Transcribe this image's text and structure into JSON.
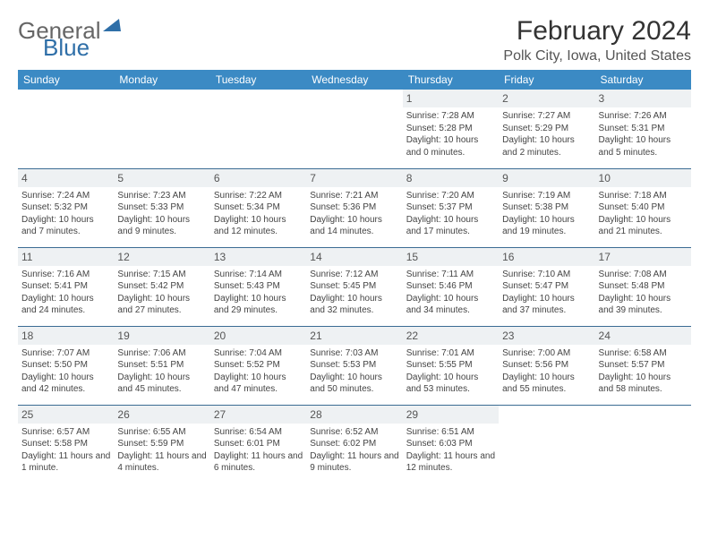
{
  "logo": {
    "text1": "General",
    "text2": "Blue"
  },
  "title": "February 2024",
  "location": "Polk City, Iowa, United States",
  "colors": {
    "header_bg": "#3b8ac4",
    "header_text": "#ffffff",
    "daynum_bg": "#eef1f3",
    "row_border": "#3b6c93",
    "logo_accent": "#2f6fa8"
  },
  "dayHeaders": [
    "Sunday",
    "Monday",
    "Tuesday",
    "Wednesday",
    "Thursday",
    "Friday",
    "Saturday"
  ],
  "weeks": [
    [
      {
        "n": "",
        "sr": "",
        "ss": "",
        "dl": ""
      },
      {
        "n": "",
        "sr": "",
        "ss": "",
        "dl": ""
      },
      {
        "n": "",
        "sr": "",
        "ss": "",
        "dl": ""
      },
      {
        "n": "",
        "sr": "",
        "ss": "",
        "dl": ""
      },
      {
        "n": "1",
        "sr": "Sunrise: 7:28 AM",
        "ss": "Sunset: 5:28 PM",
        "dl": "Daylight: 10 hours and 0 minutes."
      },
      {
        "n": "2",
        "sr": "Sunrise: 7:27 AM",
        "ss": "Sunset: 5:29 PM",
        "dl": "Daylight: 10 hours and 2 minutes."
      },
      {
        "n": "3",
        "sr": "Sunrise: 7:26 AM",
        "ss": "Sunset: 5:31 PM",
        "dl": "Daylight: 10 hours and 5 minutes."
      }
    ],
    [
      {
        "n": "4",
        "sr": "Sunrise: 7:24 AM",
        "ss": "Sunset: 5:32 PM",
        "dl": "Daylight: 10 hours and 7 minutes."
      },
      {
        "n": "5",
        "sr": "Sunrise: 7:23 AM",
        "ss": "Sunset: 5:33 PM",
        "dl": "Daylight: 10 hours and 9 minutes."
      },
      {
        "n": "6",
        "sr": "Sunrise: 7:22 AM",
        "ss": "Sunset: 5:34 PM",
        "dl": "Daylight: 10 hours and 12 minutes."
      },
      {
        "n": "7",
        "sr": "Sunrise: 7:21 AM",
        "ss": "Sunset: 5:36 PM",
        "dl": "Daylight: 10 hours and 14 minutes."
      },
      {
        "n": "8",
        "sr": "Sunrise: 7:20 AM",
        "ss": "Sunset: 5:37 PM",
        "dl": "Daylight: 10 hours and 17 minutes."
      },
      {
        "n": "9",
        "sr": "Sunrise: 7:19 AM",
        "ss": "Sunset: 5:38 PM",
        "dl": "Daylight: 10 hours and 19 minutes."
      },
      {
        "n": "10",
        "sr": "Sunrise: 7:18 AM",
        "ss": "Sunset: 5:40 PM",
        "dl": "Daylight: 10 hours and 21 minutes."
      }
    ],
    [
      {
        "n": "11",
        "sr": "Sunrise: 7:16 AM",
        "ss": "Sunset: 5:41 PM",
        "dl": "Daylight: 10 hours and 24 minutes."
      },
      {
        "n": "12",
        "sr": "Sunrise: 7:15 AM",
        "ss": "Sunset: 5:42 PM",
        "dl": "Daylight: 10 hours and 27 minutes."
      },
      {
        "n": "13",
        "sr": "Sunrise: 7:14 AM",
        "ss": "Sunset: 5:43 PM",
        "dl": "Daylight: 10 hours and 29 minutes."
      },
      {
        "n": "14",
        "sr": "Sunrise: 7:12 AM",
        "ss": "Sunset: 5:45 PM",
        "dl": "Daylight: 10 hours and 32 minutes."
      },
      {
        "n": "15",
        "sr": "Sunrise: 7:11 AM",
        "ss": "Sunset: 5:46 PM",
        "dl": "Daylight: 10 hours and 34 minutes."
      },
      {
        "n": "16",
        "sr": "Sunrise: 7:10 AM",
        "ss": "Sunset: 5:47 PM",
        "dl": "Daylight: 10 hours and 37 minutes."
      },
      {
        "n": "17",
        "sr": "Sunrise: 7:08 AM",
        "ss": "Sunset: 5:48 PM",
        "dl": "Daylight: 10 hours and 39 minutes."
      }
    ],
    [
      {
        "n": "18",
        "sr": "Sunrise: 7:07 AM",
        "ss": "Sunset: 5:50 PM",
        "dl": "Daylight: 10 hours and 42 minutes."
      },
      {
        "n": "19",
        "sr": "Sunrise: 7:06 AM",
        "ss": "Sunset: 5:51 PM",
        "dl": "Daylight: 10 hours and 45 minutes."
      },
      {
        "n": "20",
        "sr": "Sunrise: 7:04 AM",
        "ss": "Sunset: 5:52 PM",
        "dl": "Daylight: 10 hours and 47 minutes."
      },
      {
        "n": "21",
        "sr": "Sunrise: 7:03 AM",
        "ss": "Sunset: 5:53 PM",
        "dl": "Daylight: 10 hours and 50 minutes."
      },
      {
        "n": "22",
        "sr": "Sunrise: 7:01 AM",
        "ss": "Sunset: 5:55 PM",
        "dl": "Daylight: 10 hours and 53 minutes."
      },
      {
        "n": "23",
        "sr": "Sunrise: 7:00 AM",
        "ss": "Sunset: 5:56 PM",
        "dl": "Daylight: 10 hours and 55 minutes."
      },
      {
        "n": "24",
        "sr": "Sunrise: 6:58 AM",
        "ss": "Sunset: 5:57 PM",
        "dl": "Daylight: 10 hours and 58 minutes."
      }
    ],
    [
      {
        "n": "25",
        "sr": "Sunrise: 6:57 AM",
        "ss": "Sunset: 5:58 PM",
        "dl": "Daylight: 11 hours and 1 minute."
      },
      {
        "n": "26",
        "sr": "Sunrise: 6:55 AM",
        "ss": "Sunset: 5:59 PM",
        "dl": "Daylight: 11 hours and 4 minutes."
      },
      {
        "n": "27",
        "sr": "Sunrise: 6:54 AM",
        "ss": "Sunset: 6:01 PM",
        "dl": "Daylight: 11 hours and 6 minutes."
      },
      {
        "n": "28",
        "sr": "Sunrise: 6:52 AM",
        "ss": "Sunset: 6:02 PM",
        "dl": "Daylight: 11 hours and 9 minutes."
      },
      {
        "n": "29",
        "sr": "Sunrise: 6:51 AM",
        "ss": "Sunset: 6:03 PM",
        "dl": "Daylight: 11 hours and 12 minutes."
      },
      {
        "n": "",
        "sr": "",
        "ss": "",
        "dl": ""
      },
      {
        "n": "",
        "sr": "",
        "ss": "",
        "dl": ""
      }
    ]
  ]
}
